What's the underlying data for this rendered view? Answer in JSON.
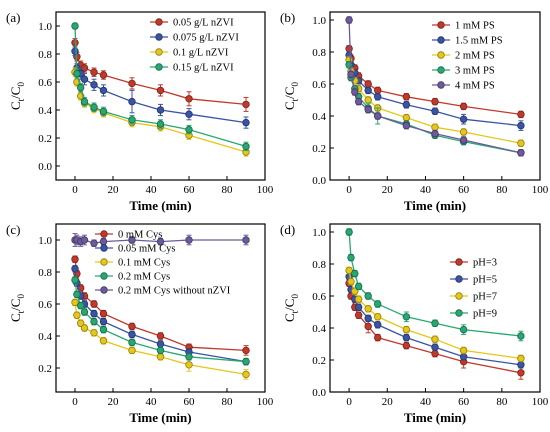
{
  "chart_data": [
    {
      "type": "line",
      "panel_label": "(a)",
      "xlabel": "Time (min)",
      "ylabel_main": "C",
      "ylabel_sub1": "t",
      "ylabel_sep": "/C",
      "ylabel_sub2": "0",
      "xlim": [
        -10,
        100
      ],
      "ylim": [
        -0.1,
        1.1
      ],
      "xticks": [
        0,
        20,
        40,
        60,
        80,
        100
      ],
      "yticks": [
        0.0,
        0.2,
        0.4,
        0.6,
        0.8,
        1.0
      ],
      "xtick_labels": [
        "0",
        "20",
        "40",
        "60",
        "80",
        "100"
      ],
      "ytick_labels": [
        "0.0",
        "0.2",
        "0.4",
        "0.6",
        "0.8",
        "1.0"
      ],
      "legend_position": "top-right",
      "series": [
        {
          "name": "0.05 g/L nZVI",
          "color": "#c0392b",
          "x": [
            0,
            1,
            3,
            5,
            10,
            15,
            30,
            45,
            60,
            90
          ],
          "y": [
            0.88,
            0.78,
            0.72,
            0.7,
            0.67,
            0.65,
            0.59,
            0.54,
            0.48,
            0.44
          ],
          "err": [
            0.03,
            0.03,
            0.03,
            0.03,
            0.03,
            0.03,
            0.04,
            0.04,
            0.05,
            0.05
          ]
        },
        {
          "name": "0.075 g/L nZVI",
          "color": "#3a54a4",
          "x": [
            0,
            1,
            3,
            5,
            10,
            15,
            30,
            45,
            60,
            90
          ],
          "y": [
            0.82,
            0.7,
            0.66,
            0.62,
            0.58,
            0.54,
            0.46,
            0.4,
            0.37,
            0.31
          ],
          "err": [
            0.03,
            0.03,
            0.04,
            0.04,
            0.04,
            0.04,
            0.08,
            0.04,
            0.04,
            0.04
          ]
        },
        {
          "name": "0.1 g/L nZVI",
          "color": "#e6c619",
          "x": [
            0,
            1,
            3,
            5,
            10,
            15,
            30,
            45,
            60,
            90
          ],
          "y": [
            0.67,
            0.6,
            0.5,
            0.45,
            0.41,
            0.38,
            0.31,
            0.28,
            0.22,
            0.1
          ],
          "err": [
            0.03,
            0.03,
            0.03,
            0.03,
            0.03,
            0.03,
            0.03,
            0.03,
            0.03,
            0.03
          ]
        },
        {
          "name": "0.15 g/L nZVI",
          "color": "#27a872",
          "x": [
            0,
            1,
            3,
            5,
            10,
            15,
            30,
            45,
            60,
            90
          ],
          "y": [
            1.0,
            0.66,
            0.56,
            0.46,
            0.42,
            0.39,
            0.33,
            0.3,
            0.26,
            0.14
          ],
          "err": [
            0.02,
            0.03,
            0.03,
            0.03,
            0.03,
            0.03,
            0.03,
            0.03,
            0.03,
            0.03
          ]
        }
      ]
    },
    {
      "type": "line",
      "panel_label": "(b)",
      "xlabel": "Time (min)",
      "ylabel_main": "C",
      "ylabel_sub1": "t",
      "ylabel_sep": "/C",
      "ylabel_sub2": "0",
      "xlim": [
        -10,
        100
      ],
      "ylim": [
        0.0,
        1.05
      ],
      "xticks": [
        0,
        20,
        40,
        60,
        80,
        100
      ],
      "yticks": [
        0.0,
        0.2,
        0.4,
        0.6,
        0.8,
        1.0
      ],
      "xtick_labels": [
        "0",
        "20",
        "40",
        "60",
        "80",
        "100"
      ],
      "ytick_labels": [
        "0.0",
        "0.2",
        "0.4",
        "0.6",
        "0.8",
        "1.0"
      ],
      "legend_position": "top-right",
      "series": [
        {
          "name": "1 mM PS",
          "color": "#c0392b",
          "x": [
            0,
            1,
            3,
            5,
            10,
            15,
            30,
            45,
            60,
            90
          ],
          "y": [
            0.82,
            0.76,
            0.7,
            0.65,
            0.6,
            0.56,
            0.52,
            0.49,
            0.46,
            0.41
          ],
          "err": [
            0.02,
            0.02,
            0.02,
            0.02,
            0.02,
            0.02,
            0.02,
            0.02,
            0.02,
            0.02
          ]
        },
        {
          "name": "1.5 mM PS",
          "color": "#3a54a4",
          "x": [
            0,
            1,
            3,
            5,
            10,
            15,
            30,
            45,
            60,
            90
          ],
          "y": [
            0.78,
            0.72,
            0.67,
            0.62,
            0.56,
            0.52,
            0.47,
            0.43,
            0.38,
            0.34
          ],
          "err": [
            0.02,
            0.02,
            0.02,
            0.02,
            0.02,
            0.02,
            0.02,
            0.02,
            0.03,
            0.03
          ]
        },
        {
          "name": "2 mM PS",
          "color": "#e6c619",
          "x": [
            0,
            1,
            3,
            5,
            10,
            15,
            30,
            45,
            60,
            90
          ],
          "y": [
            0.75,
            0.68,
            0.62,
            0.57,
            0.5,
            0.45,
            0.39,
            0.33,
            0.3,
            0.23
          ],
          "err": [
            0.02,
            0.02,
            0.02,
            0.02,
            0.02,
            0.02,
            0.02,
            0.02,
            0.02,
            0.02
          ]
        },
        {
          "name": "3 mM PS",
          "color": "#27a872",
          "x": [
            0,
            1,
            3,
            5,
            10,
            15,
            30,
            45,
            60,
            90
          ],
          "y": [
            0.72,
            0.64,
            0.57,
            0.52,
            0.45,
            0.4,
            0.35,
            0.28,
            0.24,
            0.17
          ],
          "err": [
            0.02,
            0.02,
            0.02,
            0.02,
            0.03,
            0.05,
            0.02,
            0.02,
            0.02,
            0.02
          ]
        },
        {
          "name": "4 mM PS",
          "color": "#6c5a9c",
          "x": [
            0,
            1,
            3,
            5,
            10,
            15,
            30,
            45,
            60,
            90
          ],
          "y": [
            1.0,
            0.66,
            0.55,
            0.49,
            0.44,
            0.4,
            0.34,
            0.29,
            0.25,
            0.17
          ],
          "err": [
            0.02,
            0.02,
            0.02,
            0.02,
            0.02,
            0.02,
            0.02,
            0.02,
            0.02,
            0.02
          ]
        }
      ]
    },
    {
      "type": "line",
      "panel_label": "(c)",
      "xlabel": "Time (min)",
      "ylabel_main": "C",
      "ylabel_sub1": "t",
      "ylabel_sep": "/C",
      "ylabel_sub2": "0",
      "xlim": [
        -10,
        100
      ],
      "ylim": [
        0.05,
        1.1
      ],
      "xticks": [
        0,
        20,
        40,
        60,
        80,
        100
      ],
      "yticks": [
        0.2,
        0.4,
        0.6,
        0.8,
        1.0
      ],
      "xtick_labels": [
        "0",
        "20",
        "40",
        "60",
        "80",
        "100"
      ],
      "ytick_labels": [
        "0.2",
        "0.4",
        "0.6",
        "0.8",
        "1.0"
      ],
      "legend_position": "top-right",
      "series": [
        {
          "name": "0 mM Cys",
          "color": "#c0392b",
          "x": [
            0,
            1,
            3,
            5,
            10,
            15,
            30,
            45,
            60,
            90
          ],
          "y": [
            0.88,
            0.79,
            0.7,
            0.65,
            0.6,
            0.54,
            0.46,
            0.4,
            0.33,
            0.31
          ],
          "err": [
            0.02,
            0.02,
            0.02,
            0.02,
            0.02,
            0.02,
            0.02,
            0.02,
            0.02,
            0.03
          ]
        },
        {
          "name": "0.05 mM Cys",
          "color": "#3a54a4",
          "x": [
            0,
            1,
            3,
            5,
            10,
            15,
            30,
            45,
            60,
            90
          ],
          "y": [
            0.82,
            0.73,
            0.65,
            0.6,
            0.54,
            0.49,
            0.41,
            0.35,
            0.3,
            0.24
          ],
          "err": [
            0.02,
            0.02,
            0.02,
            0.02,
            0.02,
            0.02,
            0.02,
            0.02,
            0.02,
            0.02
          ]
        },
        {
          "name": "0.1 mM Cys",
          "color": "#e6c619",
          "x": [
            0,
            1,
            3,
            5,
            10,
            15,
            30,
            45,
            60,
            90
          ],
          "y": [
            0.61,
            0.53,
            0.48,
            0.45,
            0.42,
            0.37,
            0.31,
            0.27,
            0.22,
            0.16
          ],
          "err": [
            0.02,
            0.02,
            0.02,
            0.02,
            0.02,
            0.02,
            0.02,
            0.02,
            0.04,
            0.03
          ]
        },
        {
          "name": "0.2 mM Cys",
          "color": "#27a872",
          "x": [
            0,
            1,
            3,
            5,
            10,
            15,
            30,
            45,
            60,
            90
          ],
          "y": [
            0.75,
            0.66,
            0.59,
            0.55,
            0.49,
            0.44,
            0.36,
            0.31,
            0.27,
            0.24
          ],
          "err": [
            0.02,
            0.02,
            0.02,
            0.02,
            0.02,
            0.02,
            0.02,
            0.02,
            0.02,
            0.02
          ]
        },
        {
          "name": "0.2 mM Cys without nZVI",
          "color": "#6c5a9c",
          "x": [
            0,
            1,
            3,
            5,
            10,
            15,
            30,
            45,
            60,
            90
          ],
          "y": [
            1.0,
            1.0,
            0.99,
            1.0,
            0.98,
            0.99,
            1.0,
            0.99,
            1.0,
            1.0
          ],
          "err": [
            0.04,
            0.03,
            0.03,
            0.03,
            0.02,
            0.02,
            0.02,
            0.02,
            0.03,
            0.03
          ]
        }
      ]
    },
    {
      "type": "line",
      "panel_label": "(d)",
      "xlabel": "Time (min)",
      "ylabel_main": "C",
      "ylabel_sub1": "t",
      "ylabel_sep": "/C",
      "ylabel_sub2": "0",
      "xlim": [
        -10,
        100
      ],
      "ylim": [
        0.0,
        1.05
      ],
      "xticks": [
        0,
        20,
        40,
        60,
        80,
        100
      ],
      "yticks": [
        0.0,
        0.2,
        0.4,
        0.6,
        0.8,
        1.0
      ],
      "xtick_labels": [
        "0",
        "20",
        "40",
        "60",
        "80",
        "100"
      ],
      "ytick_labels": [
        "0.0",
        "0.2",
        "0.4",
        "0.6",
        "0.8",
        "1.0"
      ],
      "legend_position": "top-right",
      "series": [
        {
          "name": "pH=3",
          "color": "#c0392b",
          "x": [
            0,
            1,
            3,
            5,
            10,
            15,
            30,
            45,
            60,
            90
          ],
          "y": [
            0.68,
            0.6,
            0.53,
            0.48,
            0.41,
            0.34,
            0.29,
            0.24,
            0.19,
            0.12
          ],
          "err": [
            0.02,
            0.02,
            0.02,
            0.02,
            0.04,
            0.02,
            0.02,
            0.02,
            0.04,
            0.04
          ]
        },
        {
          "name": "pH=5",
          "color": "#3a54a4",
          "x": [
            0,
            1,
            3,
            5,
            10,
            15,
            30,
            45,
            60,
            90
          ],
          "y": [
            0.72,
            0.64,
            0.58,
            0.53,
            0.46,
            0.42,
            0.34,
            0.28,
            0.22,
            0.17
          ],
          "err": [
            0.02,
            0.02,
            0.02,
            0.02,
            0.02,
            0.02,
            0.02,
            0.02,
            0.02,
            0.02
          ]
        },
        {
          "name": "pH=7",
          "color": "#e6c619",
          "x": [
            0,
            1,
            3,
            5,
            10,
            15,
            30,
            45,
            60,
            90
          ],
          "y": [
            0.76,
            0.69,
            0.63,
            0.58,
            0.52,
            0.47,
            0.39,
            0.33,
            0.26,
            0.21
          ],
          "err": [
            0.02,
            0.02,
            0.02,
            0.02,
            0.02,
            0.02,
            0.02,
            0.02,
            0.02,
            0.02
          ]
        },
        {
          "name": "pH=9",
          "color": "#27a872",
          "x": [
            0,
            1,
            3,
            5,
            10,
            15,
            30,
            45,
            60,
            90
          ],
          "y": [
            1.0,
            0.84,
            0.74,
            0.66,
            0.6,
            0.55,
            0.47,
            0.43,
            0.39,
            0.35
          ],
          "err": [
            0.02,
            0.02,
            0.02,
            0.02,
            0.02,
            0.02,
            0.03,
            0.02,
            0.03,
            0.03
          ]
        }
      ]
    }
  ]
}
